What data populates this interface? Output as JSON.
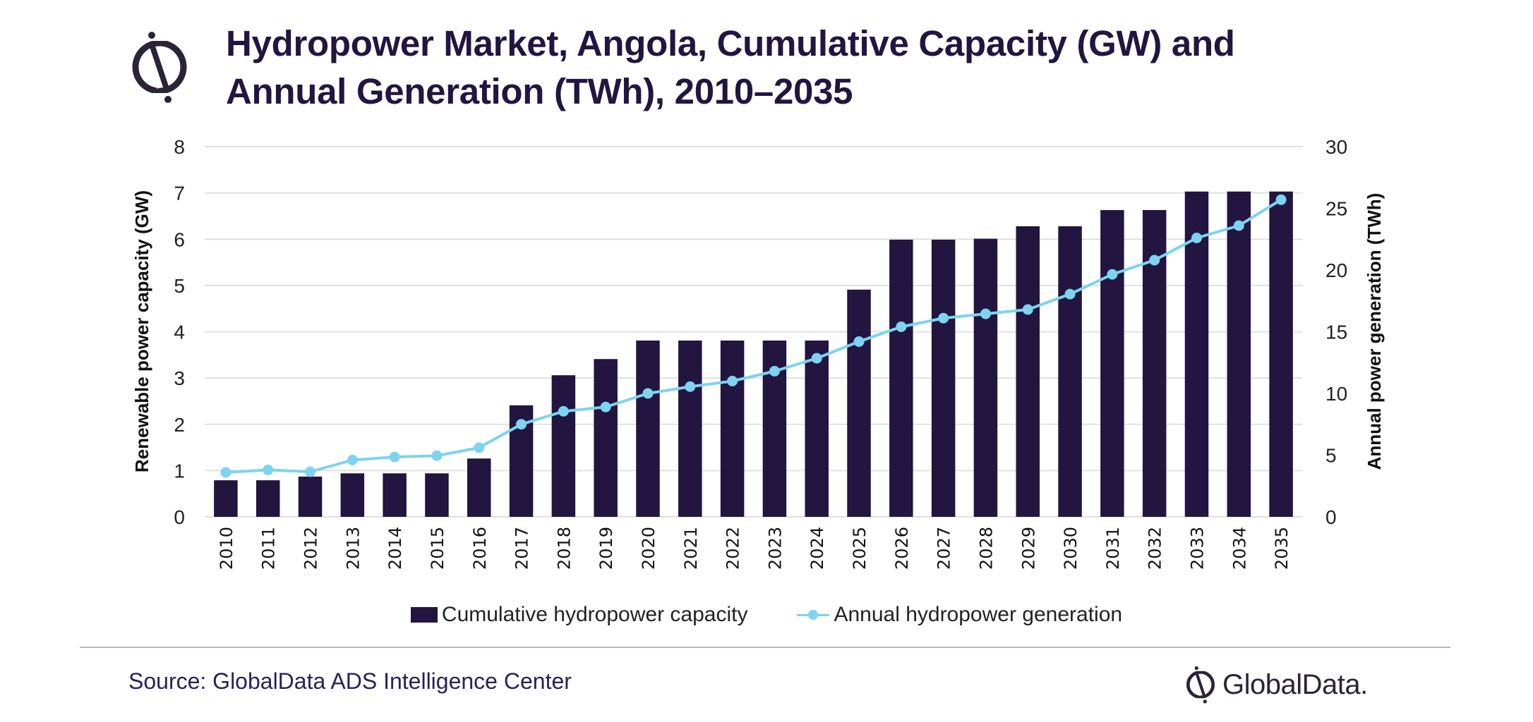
{
  "header": {
    "title_line1": "Hydropower Market, Angola, Cumulative Capacity (GW) and",
    "title_line2": "Annual Generation (TWh), 2010–2035",
    "logo_icon": "globaldata-logo-icon"
  },
  "footer": {
    "source": "Source: GlobalData ADS Intelligence Center",
    "brand": "GlobalData."
  },
  "colors": {
    "bar": "#221540",
    "line": "#7DD3F0",
    "grid": "#e0e0e0",
    "title": "#221540"
  },
  "chart_data": {
    "type": "bar",
    "title": "Hydropower Market, Angola, Cumulative Capacity (GW) and Annual Generation (TWh), 2010–2035",
    "categories": [
      "2010",
      "2011",
      "2012",
      "2013",
      "2014",
      "2015",
      "2016",
      "2017",
      "2018",
      "2019",
      "2020",
      "2021",
      "2022",
      "2023",
      "2024",
      "2025",
      "2026",
      "2027",
      "2028",
      "2029",
      "2030",
      "2031",
      "2032",
      "2033",
      "2034",
      "2035"
    ],
    "series": [
      {
        "name": "Cumulative hydropower capacity",
        "type": "bar",
        "axis": "left",
        "values": [
          0.79,
          0.79,
          0.87,
          0.94,
          0.94,
          0.94,
          1.26,
          2.41,
          3.06,
          3.41,
          3.81,
          3.81,
          3.81,
          3.81,
          3.81,
          4.91,
          5.99,
          5.99,
          6.01,
          6.28,
          6.28,
          6.63,
          6.63,
          7.03,
          7.03,
          7.03
        ]
      },
      {
        "name": "Annual hydropower generation",
        "type": "line",
        "axis": "right",
        "values": [
          3.6,
          3.8,
          3.65,
          4.6,
          4.85,
          4.95,
          5.6,
          7.5,
          8.55,
          8.9,
          10.0,
          10.55,
          11.0,
          11.8,
          12.85,
          14.2,
          15.4,
          16.1,
          16.45,
          16.8,
          18.05,
          19.65,
          20.8,
          22.6,
          23.6,
          25.7
        ]
      }
    ],
    "ylabel": "Renewable power capacity (GW)",
    "ylabel_right": "Annual power generation (TWh)",
    "xlabel": "",
    "ylim": [
      0,
      8
    ],
    "ylim_right": [
      0,
      30
    ],
    "yticks": [
      "0",
      "1",
      "2",
      "3",
      "4",
      "5",
      "6",
      "7",
      "8"
    ],
    "yticks_right": [
      "0",
      "5",
      "10",
      "15",
      "20",
      "25",
      "30"
    ],
    "grid": true,
    "legend_position": "bottom"
  }
}
